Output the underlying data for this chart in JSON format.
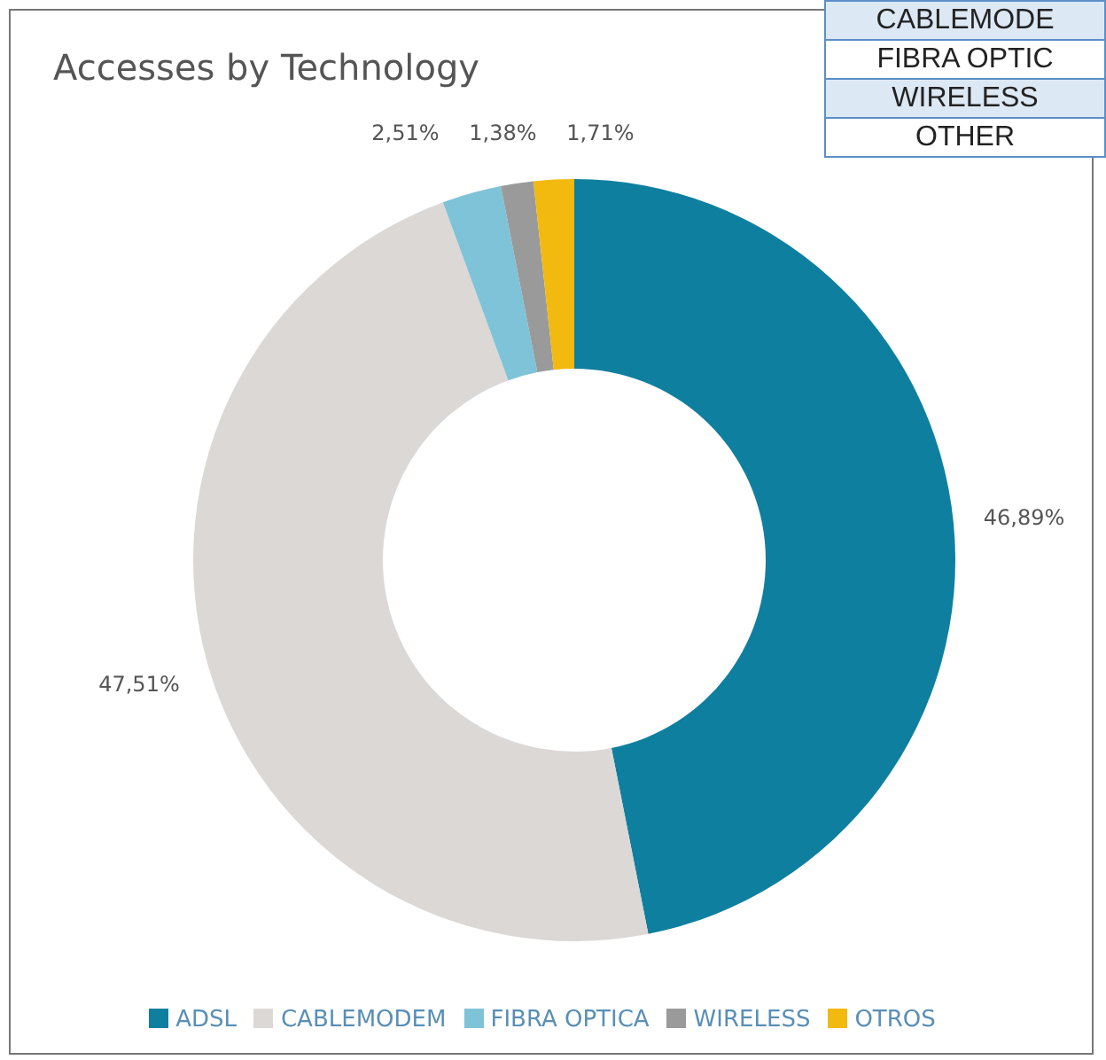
{
  "chart_data": {
    "type": "donut",
    "title": "Accesses by Technology",
    "categories": [
      "ADSL",
      "CABLEMODEM",
      "FIBRA OPTICA",
      "WIRELESS",
      "OTROS"
    ],
    "values": [
      46.89,
      47.51,
      2.51,
      1.38,
      1.71
    ],
    "value_labels": [
      "46,89%",
      "47,51%",
      "2,51%",
      "1,38%",
      "1,71%"
    ],
    "colors": [
      "#0f7f9f",
      "#dcd8d5",
      "#7ec3d8",
      "#9a9a9a",
      "#f2b90f"
    ],
    "legend": "bottom",
    "annotations": [
      "CABLEMODE",
      "FIBRA OPTIC",
      "WIRELESS",
      "OTHER"
    ]
  }
}
